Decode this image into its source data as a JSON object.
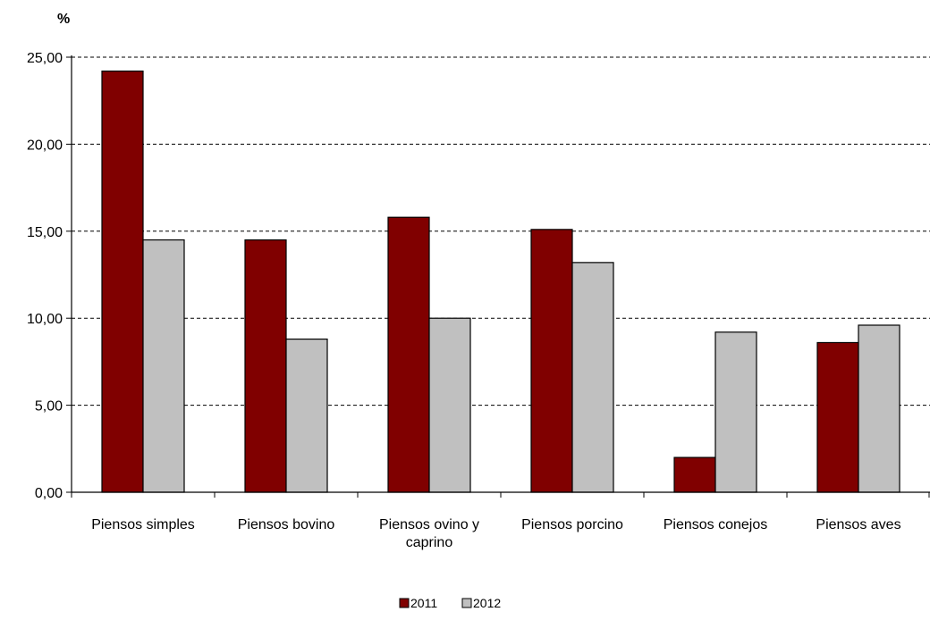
{
  "chart_data": {
    "type": "bar",
    "ylabel": "%",
    "categories": [
      [
        "Piensos simples"
      ],
      [
        "Piensos bovino"
      ],
      [
        "Piensos ovino y",
        "caprino"
      ],
      [
        "Piensos porcino"
      ],
      [
        "Piensos conejos"
      ],
      [
        "Piensos aves"
      ]
    ],
    "series": [
      {
        "name": "2011",
        "color": "#800000",
        "values": [
          24.2,
          14.5,
          15.8,
          15.1,
          2.0,
          8.6
        ]
      },
      {
        "name": "2012",
        "color": "#c0c0c0",
        "values": [
          14.5,
          8.8,
          10.0,
          13.2,
          9.2,
          9.6
        ]
      }
    ],
    "ylim": [
      0,
      25
    ],
    "yticks": [
      "0,00",
      "5,00",
      "10,00",
      "15,00",
      "20,00",
      "25,00"
    ],
    "grid": true,
    "grid_style": "dashed",
    "legend_position": "bottom"
  }
}
